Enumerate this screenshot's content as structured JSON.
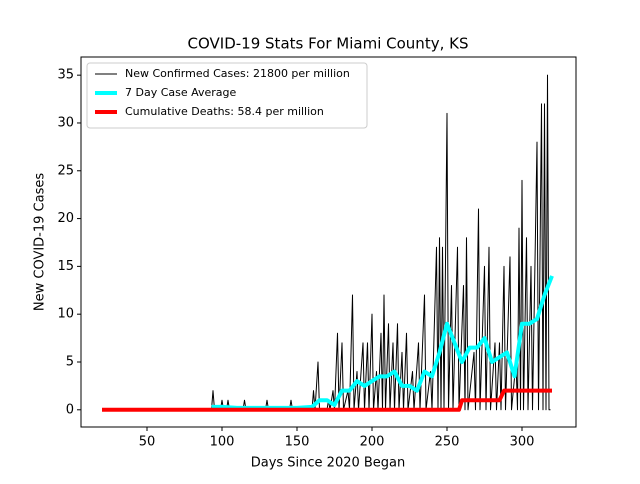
{
  "chart_data": {
    "type": "line",
    "title": "COVID-19 Stats For Miami County, KS",
    "xlabel": "Days Since 2020 Began",
    "ylabel": "New COVID-19 Cases",
    "xlim": [
      6,
      336
    ],
    "ylim": [
      -1.8,
      36.9
    ],
    "xticks": [
      50,
      100,
      150,
      200,
      250,
      300
    ],
    "yticks": [
      0,
      5,
      10,
      15,
      20,
      25,
      30,
      35
    ],
    "legend": "upper left",
    "series": [
      {
        "name": "New Confirmed Cases: 21800 per million",
        "color": "#000000",
        "width": 1,
        "x": [
          20,
          93,
          94,
          95,
          99,
          100,
          101,
          103,
          104,
          105,
          114,
          115,
          116,
          129,
          130,
          131,
          145,
          146,
          147,
          160,
          161,
          162,
          164,
          165,
          170,
          171,
          172,
          174,
          175,
          177,
          178,
          180,
          181,
          184,
          185,
          187,
          188,
          190,
          191,
          194,
          195,
          197,
          198,
          200,
          201,
          203,
          204,
          206,
          207,
          208,
          209,
          211,
          212,
          214,
          215,
          217,
          218,
          220,
          221,
          223,
          224,
          227,
          228,
          231,
          232,
          235,
          236,
          239,
          240,
          243,
          244,
          245,
          246,
          247,
          248,
          250,
          251,
          253,
          254,
          257,
          258,
          261,
          262,
          263,
          264,
          268,
          269,
          271,
          272,
          275,
          276,
          278,
          279,
          282,
          283,
          285,
          286,
          288,
          289,
          292,
          293,
          296,
          297,
          298,
          299,
          300,
          301,
          303,
          304,
          306,
          307,
          310,
          311,
          313,
          314,
          315,
          316,
          317,
          318,
          319
        ],
        "values": [
          0,
          0,
          2,
          0,
          0,
          1,
          0,
          0,
          1,
          0,
          0,
          1,
          0,
          0,
          1,
          0,
          0,
          1,
          0,
          0,
          2,
          0,
          5,
          0,
          0,
          1,
          0,
          2,
          0,
          8,
          0,
          7,
          0,
          2,
          0,
          12,
          0,
          4,
          0,
          7,
          0,
          7,
          0,
          10,
          0,
          4,
          0,
          8,
          0,
          12,
          0,
          9,
          0,
          7,
          0,
          9,
          0,
          6,
          0,
          8,
          0,
          4,
          0,
          7,
          0,
          12,
          0,
          4,
          0,
          17,
          0,
          18,
          0,
          17,
          0,
          31,
          0,
          13,
          0,
          17,
          0,
          13,
          0,
          18,
          0,
          6,
          0,
          21,
          0,
          15,
          0,
          17,
          0,
          7,
          0,
          7,
          0,
          15,
          0,
          16,
          0,
          5,
          0,
          19,
          0,
          24,
          0,
          18,
          0,
          15,
          0,
          28,
          0,
          32,
          0,
          32,
          0,
          35,
          0,
          0
        ]
      },
      {
        "name": "7 Day Case Average",
        "color": "#00ffff",
        "width": 4,
        "x": [
          93,
          100,
          110,
          120,
          130,
          140,
          150,
          160,
          165,
          170,
          175,
          180,
          185,
          190,
          195,
          200,
          205,
          210,
          215,
          220,
          225,
          230,
          235,
          240,
          245,
          250,
          255,
          260,
          265,
          270,
          275,
          280,
          285,
          290,
          295,
          300,
          305,
          310,
          315,
          320
        ],
        "values": [
          0.3,
          0.3,
          0.2,
          0.2,
          0.2,
          0.2,
          0.2,
          0.3,
          1,
          1,
          0.5,
          2,
          2,
          3,
          2.5,
          3,
          3.5,
          3.5,
          4,
          2.5,
          2.5,
          2,
          4,
          3.5,
          6,
          9,
          7,
          5,
          6.5,
          6.5,
          7.5,
          5,
          5.5,
          6,
          3.5,
          9,
          9,
          9.5,
          12,
          14
        ]
      },
      {
        "name": "Cumulative Deaths: 58.4 per million",
        "color": "#ff0000",
        "width": 4,
        "x": [
          20,
          258,
          260,
          285,
          288,
          320
        ],
        "values": [
          0,
          0,
          1,
          1,
          2,
          2
        ]
      }
    ]
  }
}
